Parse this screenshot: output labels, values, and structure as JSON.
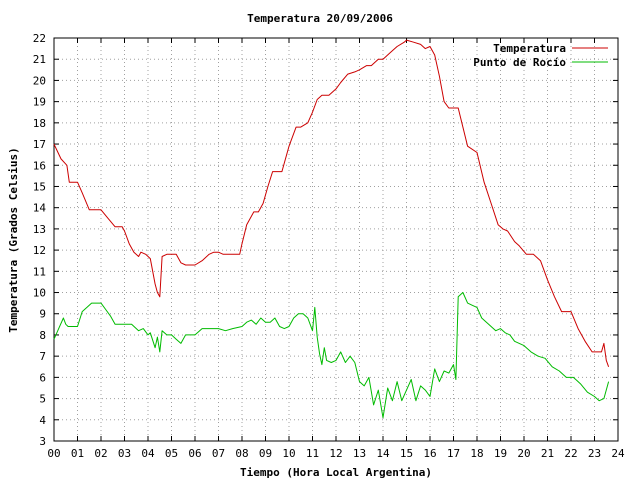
{
  "chart_data": {
    "type": "line",
    "title": "Temperatura 20/09/2006",
    "xlabel": "Tiempo (Hora Local Argentina)",
    "ylabel": "Temperatura (Grados Celsius)",
    "xlim": [
      0,
      24
    ],
    "ylim": [
      3,
      22
    ],
    "grid": true,
    "legend_position": "top-right",
    "x_tick_labels": [
      "00",
      "01",
      "02",
      "03",
      "04",
      "05",
      "06",
      "07",
      "08",
      "09",
      "10",
      "11",
      "12",
      "13",
      "14",
      "15",
      "16",
      "17",
      "18",
      "19",
      "20",
      "21",
      "22",
      "23",
      "24"
    ],
    "y_tick_labels": [
      "3",
      "4",
      "5",
      "6",
      "7",
      "8",
      "9",
      "10",
      "11",
      "12",
      "13",
      "14",
      "15",
      "16",
      "17",
      "18",
      "19",
      "20",
      "21",
      "22"
    ],
    "series": [
      {
        "name": "Temperatura",
        "color": "#cc0000",
        "x": [
          0.0,
          0.3,
          0.55,
          0.65,
          1.0,
          1.2,
          1.5,
          1.6,
          2.0,
          2.3,
          2.6,
          2.9,
          3.0,
          3.2,
          3.4,
          3.6,
          3.7,
          3.9,
          4.1,
          4.3,
          4.4,
          4.5,
          4.6,
          4.8,
          5.0,
          5.2,
          5.4,
          5.6,
          6.0,
          6.3,
          6.6,
          6.8,
          7.0,
          7.2,
          7.5,
          7.9,
          8.0,
          8.2,
          8.5,
          8.7,
          8.9,
          9.1,
          9.3,
          9.5,
          9.7,
          10.0,
          10.3,
          10.5,
          10.8,
          11.0,
          11.2,
          11.4,
          11.5,
          11.7,
          12.0,
          12.2,
          12.5,
          12.8,
          13.0,
          13.3,
          13.5,
          13.8,
          14.0,
          14.3,
          14.6,
          14.9,
          15.0,
          15.3,
          15.6,
          15.8,
          16.0,
          16.2,
          16.4,
          16.6,
          16.8,
          17.0,
          17.2,
          17.4,
          17.6,
          18.0,
          18.3,
          18.6,
          18.9,
          19.1,
          19.3,
          19.6,
          19.8,
          20.1,
          20.4,
          20.7,
          21.0,
          21.3,
          21.6,
          22.0,
          22.3,
          22.6,
          22.9,
          23.1,
          23.3,
          23.4,
          23.5,
          23.6
        ],
        "y": [
          17.0,
          16.3,
          16.0,
          15.2,
          15.2,
          14.7,
          13.9,
          13.9,
          13.9,
          13.5,
          13.1,
          13.1,
          12.9,
          12.3,
          11.9,
          11.7,
          11.9,
          11.8,
          11.6,
          10.4,
          10.0,
          9.8,
          11.7,
          11.8,
          11.8,
          11.8,
          11.4,
          11.3,
          11.3,
          11.5,
          11.8,
          11.9,
          11.9,
          11.8,
          11.8,
          11.8,
          12.3,
          13.2,
          13.8,
          13.8,
          14.2,
          15.0,
          15.7,
          15.7,
          15.7,
          16.9,
          17.8,
          17.8,
          18.0,
          18.5,
          19.1,
          19.3,
          19.3,
          19.3,
          19.6,
          19.9,
          20.3,
          20.4,
          20.5,
          20.7,
          20.7,
          21.0,
          21.0,
          21.3,
          21.6,
          21.8,
          21.9,
          21.8,
          21.7,
          21.5,
          21.6,
          21.2,
          20.2,
          19.0,
          18.7,
          18.7,
          18.7,
          17.8,
          16.9,
          16.6,
          15.2,
          14.2,
          13.2,
          13.0,
          12.9,
          12.4,
          12.2,
          11.8,
          11.8,
          11.5,
          10.6,
          9.8,
          9.1,
          9.1,
          8.3,
          7.7,
          7.2,
          7.2,
          7.2,
          7.6,
          6.8,
          6.5
        ]
      },
      {
        "name": "Punto de Rocío",
        "color": "#00bb00",
        "x": [
          0.0,
          0.2,
          0.4,
          0.5,
          0.6,
          1.0,
          1.2,
          1.4,
          1.6,
          2.0,
          2.2,
          2.4,
          2.6,
          2.8,
          3.0,
          3.3,
          3.6,
          3.8,
          4.0,
          4.1,
          4.3,
          4.4,
          4.5,
          4.6,
          4.8,
          5.0,
          5.2,
          5.4,
          5.6,
          6.0,
          6.3,
          6.6,
          7.0,
          7.3,
          7.6,
          8.0,
          8.2,
          8.4,
          8.6,
          8.8,
          9.0,
          9.2,
          9.4,
          9.6,
          9.8,
          10.0,
          10.2,
          10.4,
          10.6,
          10.8,
          11.0,
          11.1,
          11.2,
          11.3,
          11.4,
          11.5,
          11.6,
          11.8,
          12.0,
          12.2,
          12.4,
          12.6,
          12.8,
          13.0,
          13.2,
          13.4,
          13.6,
          13.8,
          14.0,
          14.2,
          14.4,
          14.6,
          14.8,
          15.0,
          15.2,
          15.4,
          15.6,
          15.8,
          16.0,
          16.2,
          16.4,
          16.6,
          16.8,
          17.0,
          17.1,
          17.2,
          17.4,
          17.6,
          17.8,
          18.0,
          18.2,
          18.4,
          18.6,
          18.8,
          19.0,
          19.2,
          19.4,
          19.6,
          19.8,
          20.0,
          20.3,
          20.6,
          20.9,
          21.2,
          21.5,
          21.8,
          22.1,
          22.4,
          22.7,
          23.0,
          23.2,
          23.4,
          23.6
        ],
        "y": [
          7.8,
          8.3,
          8.8,
          8.5,
          8.4,
          8.4,
          9.1,
          9.3,
          9.5,
          9.5,
          9.2,
          8.9,
          8.5,
          8.5,
          8.5,
          8.5,
          8.2,
          8.3,
          8.0,
          8.1,
          7.4,
          7.9,
          7.2,
          8.2,
          8.0,
          8.0,
          7.8,
          7.6,
          8.0,
          8.0,
          8.3,
          8.3,
          8.3,
          8.2,
          8.3,
          8.4,
          8.6,
          8.7,
          8.5,
          8.8,
          8.6,
          8.6,
          8.8,
          8.4,
          8.3,
          8.4,
          8.8,
          9.0,
          9.0,
          8.8,
          8.2,
          9.3,
          7.9,
          7.1,
          6.6,
          7.4,
          6.8,
          6.7,
          6.8,
          7.2,
          6.7,
          7.0,
          6.7,
          5.8,
          5.6,
          6.0,
          4.7,
          5.4,
          4.1,
          5.5,
          4.9,
          5.8,
          4.9,
          5.4,
          5.9,
          4.9,
          5.6,
          5.4,
          5.1,
          6.4,
          5.8,
          6.3,
          6.2,
          6.6,
          5.9,
          9.8,
          10.0,
          9.5,
          9.4,
          9.3,
          8.8,
          8.6,
          8.4,
          8.2,
          8.3,
          8.1,
          8.0,
          7.7,
          7.6,
          7.5,
          7.2,
          7.0,
          6.9,
          6.5,
          6.3,
          6.0,
          6.0,
          5.7,
          5.3,
          5.1,
          4.9,
          5.0,
          5.8
        ]
      }
    ]
  }
}
